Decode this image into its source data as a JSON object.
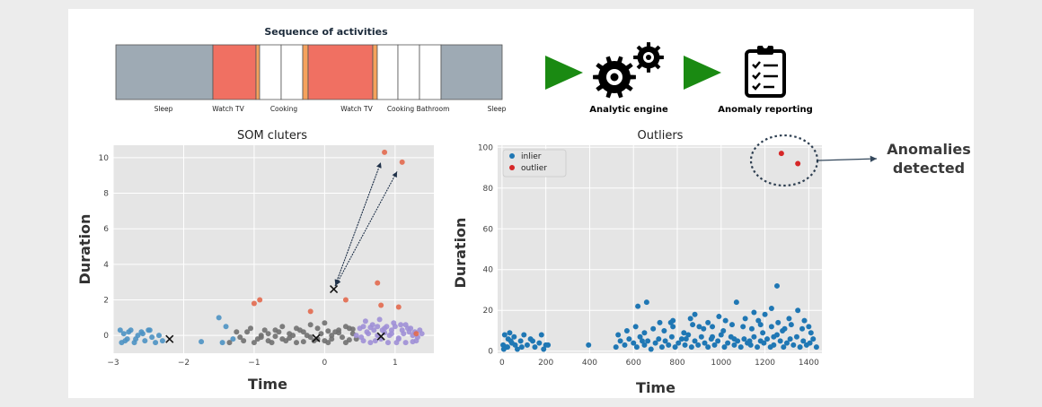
{
  "pipeline": {
    "sequence_title": "Sequence of activities",
    "segments": [
      {
        "color": "#9eaab4"
      },
      {
        "color": "#f07062"
      },
      {
        "color": "#f5a25d"
      },
      {
        "color": "#ffffff"
      },
      {
        "color": "#ffffff"
      },
      {
        "color": "#f5a25d"
      },
      {
        "color": "#f07062"
      },
      {
        "color": "#f5a25d"
      },
      {
        "color": "#ffffff"
      },
      {
        "color": "#ffffff"
      },
      {
        "color": "#ffffff"
      },
      {
        "color": "#9eaab4"
      }
    ],
    "activity_labels": [
      "Sleep",
      "Watch TV",
      "Cooking",
      "Watch TV",
      "Cooking",
      "Bathroom",
      "Sleep"
    ],
    "engine_label": "Analytic engine",
    "reporting_label": "Anomaly reporting",
    "arrow_color": "#1a8a12",
    "engine_icon": "gears-icon",
    "reporting_icon": "clipboard-checklist-icon"
  },
  "annotation": {
    "line1": "Anomalies",
    "line2": "detected"
  },
  "chart_data": [
    {
      "type": "scatter",
      "title": "SOM cluters",
      "xlabel": "Time",
      "ylabel": "Duration",
      "xlim": [
        -3.0,
        1.55
      ],
      "ylim": [
        -1.0,
        10.7
      ],
      "xticks": [
        -3,
        -2,
        -1,
        0,
        1
      ],
      "yticks": [
        0,
        2,
        4,
        6,
        8,
        10
      ],
      "grid": true,
      "series": [
        {
          "color": "#4c92c3",
          "x": [
            -2.9,
            -2.85,
            -2.8,
            -2.75,
            -2.7,
            -2.65,
            -2.6,
            -2.55,
            -2.5,
            -2.45,
            -2.4,
            -2.35,
            -2.3,
            -2.88,
            -2.78,
            -2.68,
            -2.58,
            -2.48,
            -2.83,
            -1.75,
            -1.5,
            -1.4,
            -1.3,
            -1.45
          ],
          "y": [
            0.3,
            0.1,
            -0.2,
            0.3,
            -0.4,
            0.0,
            0.2,
            -0.3,
            0.3,
            -0.1,
            -0.4,
            0.0,
            -0.3,
            -0.4,
            0.2,
            -0.2,
            0.1,
            0.3,
            -0.3,
            -0.35,
            1.0,
            0.5,
            -0.2,
            -0.4
          ]
        },
        {
          "color": "#707070",
          "x": [
            -1.35,
            -1.2,
            -1.1,
            -1.0,
            -0.9,
            -0.8,
            -0.7,
            -0.6,
            -0.5,
            -0.4,
            -0.3,
            -0.2,
            -0.1,
            0.0,
            0.1,
            0.2,
            0.3,
            0.4,
            -1.05,
            -0.95,
            -0.75,
            -0.65,
            -0.45,
            -0.35,
            -0.15,
            -0.05,
            0.05,
            0.15,
            0.25,
            0.35,
            -0.85,
            -0.55,
            -0.25,
            0.45,
            -1.15,
            -0.6,
            0.0,
            0.3,
            -0.4,
            -0.2,
            -0.7,
            0.1,
            0.2,
            -0.9,
            -0.3,
            0.4,
            -1.25,
            -0.8,
            -0.5,
            0.35,
            -0.1,
            0.05
          ],
          "y": [
            -0.4,
            -0.1,
            0.2,
            -0.4,
            0.0,
            -0.3,
            0.3,
            -0.2,
            0.1,
            -0.4,
            0.2,
            -0.1,
            0.4,
            -0.3,
            0.0,
            0.3,
            -0.4,
            0.1,
            0.4,
            -0.2,
            -0.4,
            0.2,
            0.0,
            0.3,
            -0.3,
            0.1,
            -0.4,
            0.2,
            -0.1,
            0.4,
            0.3,
            -0.3,
            0.0,
            -0.2,
            -0.3,
            0.5,
            0.7,
            0.5,
            0.4,
            0.6,
            -0.05,
            -0.2,
            0.15,
            -0.1,
            -0.35,
            0.35,
            0.2,
            0.1,
            -0.15,
            -0.25,
            -0.2,
            0.25
          ]
        },
        {
          "color": "#9e8fd6",
          "x": [
            0.45,
            0.5,
            0.55,
            0.6,
            0.65,
            0.7,
            0.75,
            0.8,
            0.85,
            0.9,
            0.95,
            1.0,
            1.05,
            1.1,
            1.15,
            1.2,
            1.25,
            1.3,
            1.35,
            0.58,
            0.68,
            0.78,
            0.88,
            0.98,
            1.08,
            1.18,
            1.28,
            0.52,
            0.62,
            0.72,
            0.82,
            0.92,
            1.02,
            1.12,
            1.22,
            1.32,
            0.75,
            0.95,
            1.15,
            0.65,
            1.05,
            0.85,
            1.25,
            0.55,
            1.38
          ],
          "y": [
            0.0,
            0.4,
            -0.3,
            0.2,
            -0.4,
            0.3,
            0.0,
            -0.2,
            0.4,
            -0.4,
            0.1,
            0.5,
            -0.2,
            0.3,
            -0.4,
            0.2,
            0.0,
            -0.3,
            0.3,
            0.8,
            0.6,
            0.9,
            0.5,
            0.7,
            0.6,
            0.4,
            0.2,
            -0.1,
            0.1,
            -0.3,
            0.3,
            0.0,
            -0.4,
            0.1,
            0.4,
            -0.1,
            0.5,
            0.3,
            0.6,
            0.45,
            -0.15,
            0.15,
            -0.35,
            0.5,
            0.1
          ]
        },
        {
          "color": "#e2694e",
          "x": [
            -1.0,
            -0.92,
            -0.2,
            0.3,
            0.75,
            0.85,
            0.8,
            1.05,
            1.1,
            1.3
          ],
          "y": [
            1.8,
            2.0,
            1.35,
            2.0,
            2.95,
            10.3,
            1.7,
            1.6,
            9.75,
            0.1
          ]
        }
      ],
      "centroids": {
        "x": [
          -2.2,
          -0.12,
          0.13,
          0.8
        ],
        "y": [
          -0.2,
          -0.15,
          2.6,
          -0.05
        ]
      },
      "arrows": [
        {
          "from": [
            0.13,
            2.6
          ],
          "to": [
            0.85,
            10.3
          ]
        },
        {
          "from": [
            0.13,
            2.6
          ],
          "to": [
            1.1,
            9.75
          ]
        }
      ]
    },
    {
      "type": "scatter",
      "title": "Outliers",
      "xlabel": "Time",
      "ylabel": "Duration",
      "xlim": [
        -20,
        1460
      ],
      "ylim": [
        -1,
        101
      ],
      "xticks": [
        0,
        200,
        400,
        600,
        800,
        1000,
        1200,
        1400
      ],
      "yticks": [
        0,
        20,
        40,
        60,
        80,
        100
      ],
      "grid": true,
      "legend": "top-left",
      "series": [
        {
          "name": "inlier",
          "color": "#1f77b4",
          "x": [
            5,
            12,
            20,
            28,
            35,
            45,
            55,
            70,
            85,
            100,
            115,
            130,
            150,
            170,
            190,
            210,
            395,
            520,
            540,
            560,
            580,
            600,
            615,
            630,
            650,
            665,
            680,
            700,
            715,
            730,
            745,
            760,
            775,
            790,
            805,
            820,
            835,
            850,
            865,
            880,
            895,
            910,
            925,
            940,
            955,
            970,
            985,
            1000,
            1015,
            1030,
            1045,
            1060,
            1075,
            1090,
            1105,
            1120,
            1135,
            1150,
            1165,
            1180,
            1195,
            1210,
            1225,
            1240,
            1255,
            1270,
            1285,
            1300,
            1315,
            1330,
            1345,
            1360,
            1375,
            1390,
            1405,
            1420,
            1435,
            620,
            660,
            1070,
            1230,
            8,
            25,
            40,
            60,
            90,
            140,
            180,
            200,
            530,
            570,
            610,
            650,
            690,
            740,
            780,
            830,
            870,
            920,
            960,
            1010,
            1050,
            1100,
            1140,
            1190,
            1230,
            1280,
            1320,
            1370,
            1410,
            720,
            780,
            860,
            940,
            1020,
            1110,
            1170,
            1260,
            1310,
            1380,
            880,
            990,
            1150,
            1200,
            1350,
            770,
            900,
            1180,
            1290,
            1400,
            640,
            840,
            960,
            1060,
            1130,
            1240
          ],
          "y": [
            3,
            8,
            2,
            6,
            9,
            4,
            7,
            1,
            5,
            8,
            3,
            6,
            2,
            4,
            1,
            3,
            3,
            2,
            5,
            3,
            6,
            4,
            2,
            7,
            3,
            5,
            1,
            4,
            6,
            2,
            5,
            3,
            7,
            2,
            4,
            6,
            3,
            8,
            2,
            5,
            3,
            7,
            4,
            2,
            6,
            3,
            5,
            8,
            2,
            4,
            7,
            3,
            5,
            2,
            6,
            4,
            3,
            7,
            2,
            5,
            4,
            6,
            2,
            3,
            8,
            5,
            2,
            4,
            6,
            3,
            7,
            2,
            5,
            3,
            4,
            6,
            2,
            22,
            24,
            24,
            21,
            1,
            2,
            5,
            3,
            2,
            5,
            8,
            3,
            8,
            10,
            12,
            9,
            11,
            10,
            12,
            9,
            13,
            11,
            12,
            10,
            13,
            12,
            11,
            9,
            12,
            10,
            13,
            11,
            9,
            14,
            15,
            16,
            14,
            15,
            16,
            15,
            14,
            16,
            15,
            18,
            17,
            19,
            18,
            20,
            14,
            12,
            13,
            11,
            12,
            5,
            6,
            7,
            6,
            5,
            7
          ]
        },
        {
          "name": "outlier",
          "color": "#d62728",
          "x": [
            1275,
            1350
          ],
          "y": [
            97,
            92
          ]
        }
      ],
      "extra_points": [
        {
          "x": 1255,
          "y": 32,
          "color": "#1f77b4"
        }
      ]
    }
  ]
}
